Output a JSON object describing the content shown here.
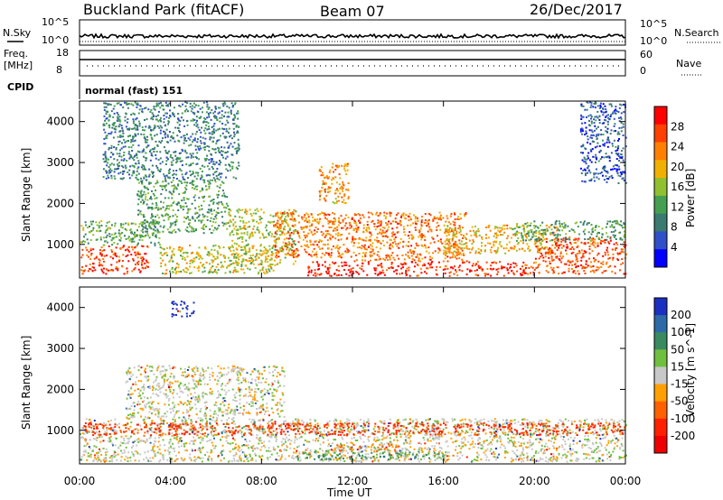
{
  "header": {
    "station": "Buckland Park (fitACF)",
    "beam": "Beam 07",
    "date": "26/Dec/2017"
  },
  "top_panels": {
    "nsky_label": "N.Sky",
    "nsky_ticks": [
      "10^5",
      "10^0"
    ],
    "nsearch_label": "N.Search",
    "nsearch_ticks": [
      "10^5",
      "10^0"
    ],
    "freq_label_1": "Freq.",
    "freq_label_2": "[MHz]",
    "freq_ticks": [
      "18",
      "8"
    ],
    "nave_label": "Nave",
    "nave_ticks": [
      "60",
      "0"
    ],
    "cpid_label": "CPID",
    "cpid_text": "normal (fast) 151"
  },
  "chart_data": [
    {
      "type": "heatmap",
      "parameter": "Power",
      "ylabel": "Slant Range [km]",
      "ylim": [
        180,
        4500
      ],
      "yticks": [
        1000,
        2000,
        3000,
        4000
      ],
      "xlim": [
        0,
        24
      ],
      "colorbar": {
        "label": "Power [dB]",
        "range": [
          0,
          32
        ],
        "ticks": [
          4,
          8,
          12,
          16,
          20,
          24,
          28
        ],
        "colors": [
          "#0000ff",
          "#3050c8",
          "#3a7a70",
          "#44a050",
          "#90c030",
          "#f0b000",
          "#ff8000",
          "#ff4000",
          "#ff0000"
        ]
      },
      "regions": [
        {
          "t0": 0.0,
          "t1": 3.0,
          "r0": 300,
          "r1": 1000,
          "value": 27
        },
        {
          "t0": 0.0,
          "t1": 3.5,
          "r0": 1000,
          "r1": 1600,
          "value": 13
        },
        {
          "t0": 2.5,
          "t1": 6.5,
          "r0": 1300,
          "r1": 2600,
          "value": 12
        },
        {
          "t0": 3.5,
          "t1": 8.5,
          "r0": 300,
          "r1": 1000,
          "value": 18
        },
        {
          "t0": 6.5,
          "t1": 9.5,
          "r0": 500,
          "r1": 1900,
          "value": 17
        },
        {
          "t0": 8.5,
          "t1": 12.0,
          "r0": 700,
          "r1": 1800,
          "value": 24
        },
        {
          "t0": 10.5,
          "t1": 11.8,
          "r0": 2000,
          "r1": 3000,
          "value": 22
        },
        {
          "t0": 10.0,
          "t1": 14.0,
          "r0": 250,
          "r1": 600,
          "value": 29
        },
        {
          "t0": 12.0,
          "t1": 17.0,
          "r0": 600,
          "r1": 1800,
          "value": 24
        },
        {
          "t0": 14.0,
          "t1": 20.0,
          "r0": 250,
          "r1": 600,
          "value": 28
        },
        {
          "t0": 16.0,
          "t1": 21.0,
          "r0": 800,
          "r1": 1500,
          "value": 20
        },
        {
          "t0": 20.0,
          "t1": 24.0,
          "r0": 300,
          "r1": 1200,
          "value": 26
        },
        {
          "t0": 19.0,
          "t1": 24.0,
          "r0": 1100,
          "r1": 1600,
          "value": 12
        },
        {
          "t0": 1.0,
          "t1": 7.0,
          "r0": 2600,
          "r1": 4500,
          "value": 9
        },
        {
          "t0": 22.0,
          "t1": 24.0,
          "r0": 2500,
          "r1": 4500,
          "value": 6
        }
      ]
    },
    {
      "type": "heatmap",
      "parameter": "Velocity",
      "ylabel": "Slant Range [km]",
      "ylim": [
        180,
        4500
      ],
      "yticks": [
        1000,
        2000,
        3000,
        4000
      ],
      "xlim": [
        0,
        24
      ],
      "xlabel": "Time UT",
      "xticks": [
        "00:00",
        "04:00",
        "08:00",
        "12:00",
        "16:00",
        "20:00",
        "00:00"
      ],
      "colorbar": {
        "label": "Velocity [m s^-1]",
        "ticks": [
          "200",
          "100",
          "50",
          "15",
          "-15",
          "-50",
          "-100",
          "-200"
        ],
        "colors": [
          "#1a30c0",
          "#2e6aa8",
          "#3a8a60",
          "#70c040",
          "#c8c8c8",
          "#ffa000",
          "#ff6000",
          "#ff2000",
          "#ee0000"
        ]
      },
      "regions": [
        {
          "t0": 0.0,
          "t1": 24.0,
          "r0": 250,
          "r1": 1300,
          "value": 0
        },
        {
          "t0": 2.0,
          "t1": 9.0,
          "r0": 1300,
          "r1": 2600,
          "value": 0
        },
        {
          "t0": 9.5,
          "t1": 16.0,
          "r0": 300,
          "r1": 500,
          "value": 40
        },
        {
          "t0": 11.0,
          "t1": 14.0,
          "r0": 500,
          "r1": 700,
          "value": -40
        },
        {
          "t0": 4.0,
          "t1": 5.0,
          "r0": 3800,
          "r1": 4200,
          "value": 200
        },
        {
          "t0": 0.0,
          "t1": 24.0,
          "r0": 900,
          "r1": 1200,
          "value": -80
        }
      ]
    }
  ]
}
